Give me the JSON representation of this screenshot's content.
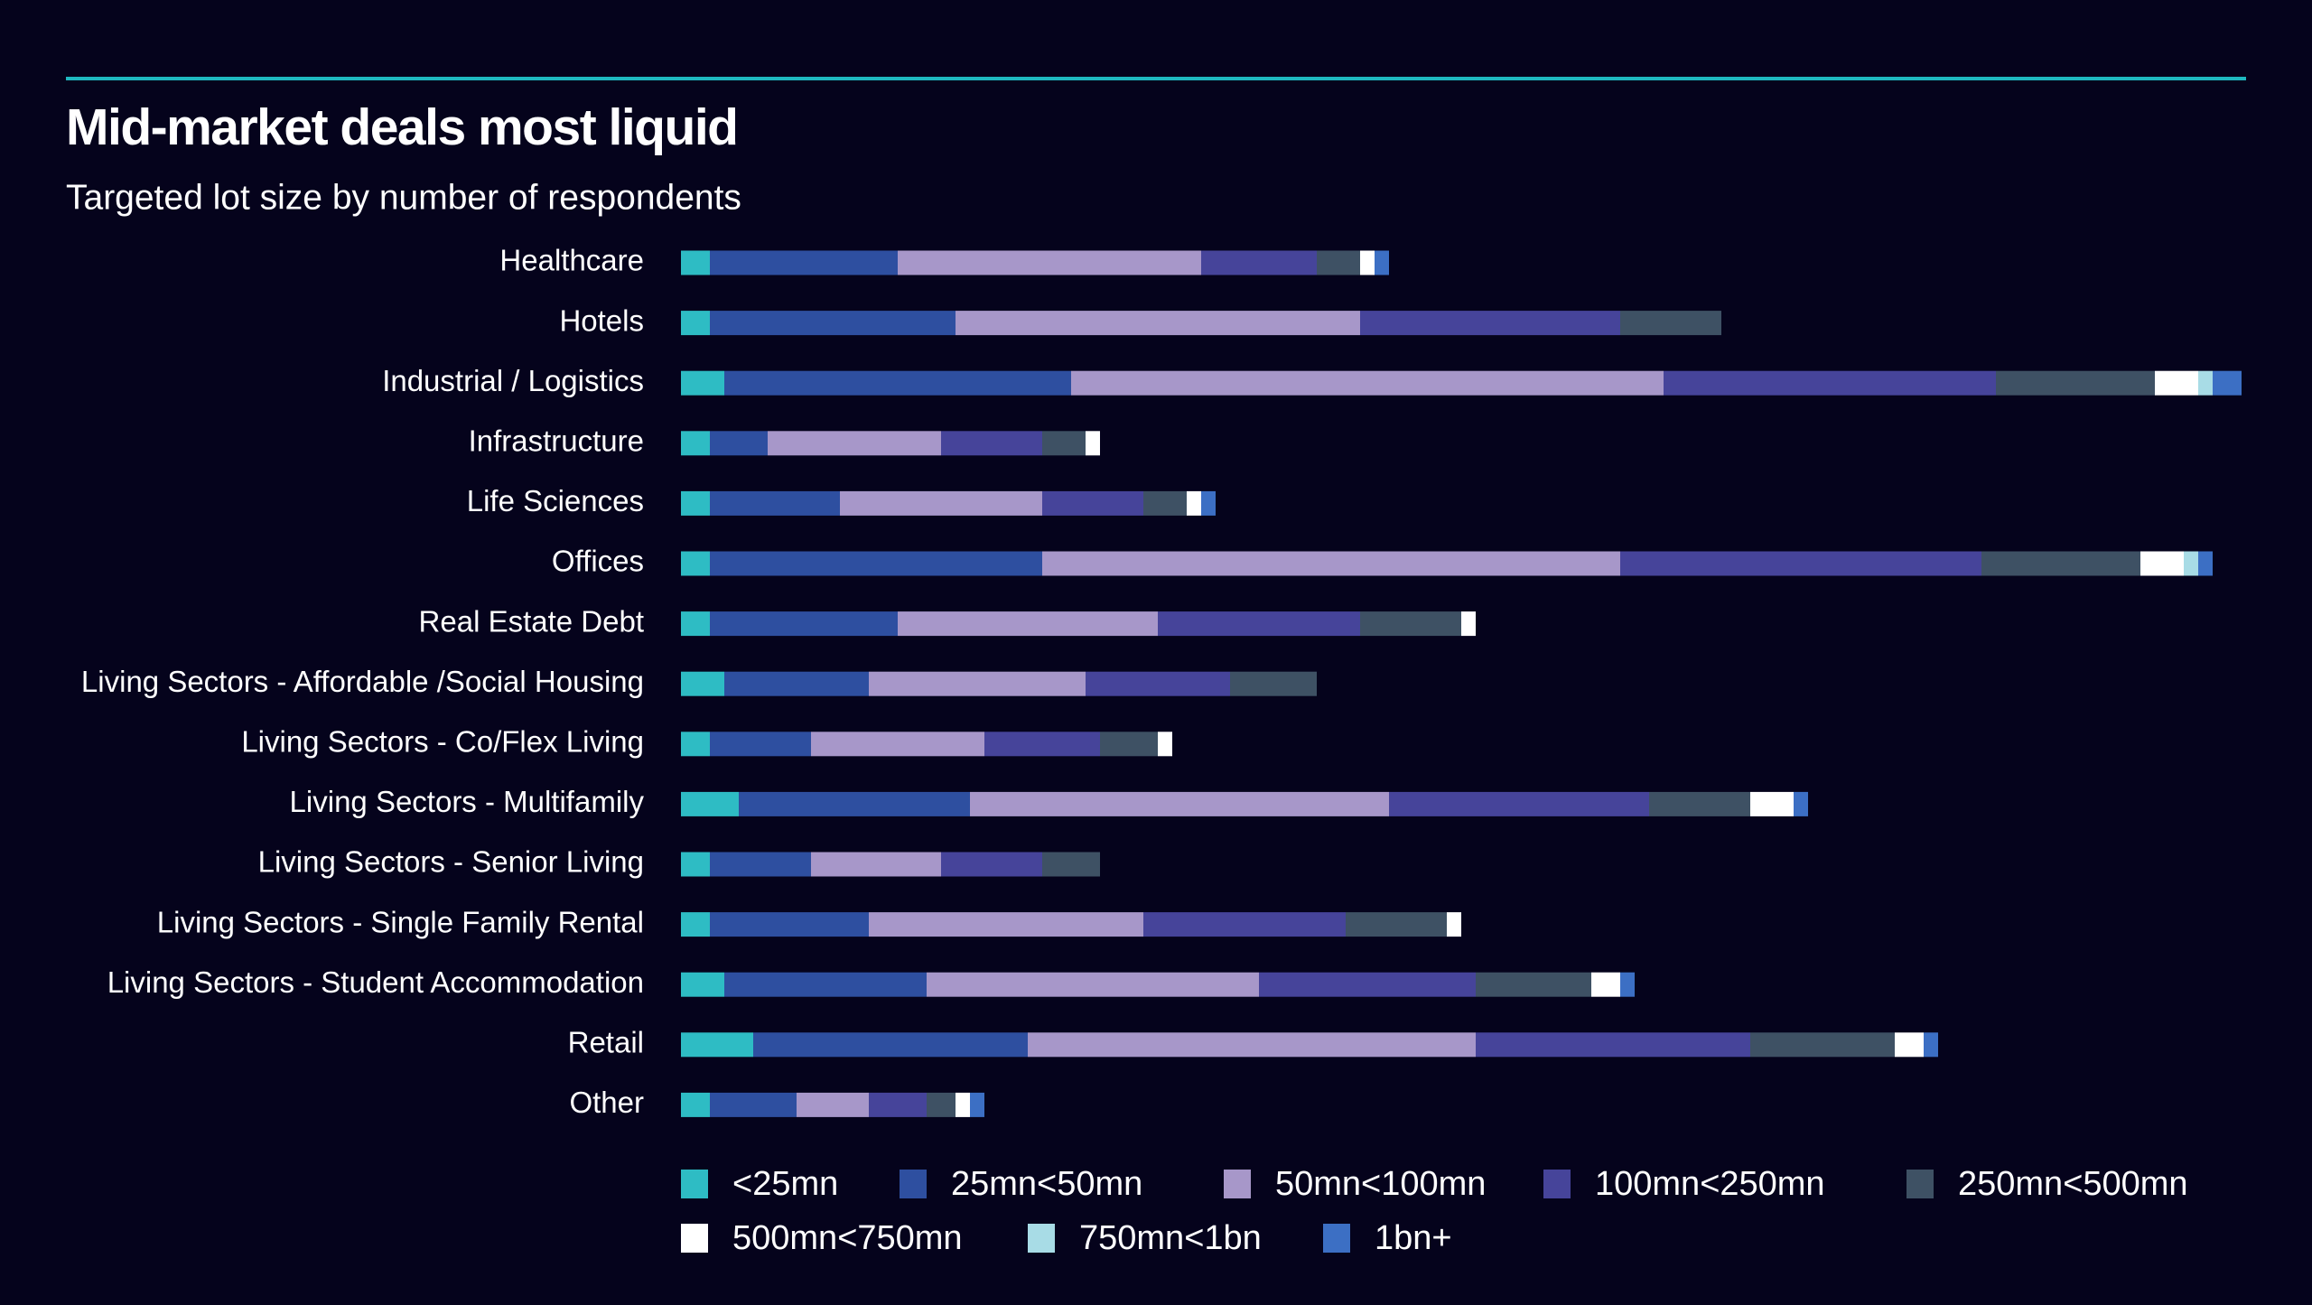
{
  "chart_data": {
    "type": "stacked-bar-horizontal",
    "title": "Mid-market deals most liquid",
    "subtitle": "Targeted lot size by number of respondents",
    "categories": [
      "Healthcare",
      "Hotels",
      "Industrial / Logistics",
      "Infrastructure",
      "Life Sciences",
      "Offices",
      "Real Estate Debt",
      "Living Sectors - Affordable /Social Housing",
      "Living Sectors - Co/Flex Living",
      "Living Sectors - Multifamily",
      "Living Sectors - Senior Living",
      "Living Sectors - Single Family Rental",
      "Living Sectors - Student Accommodation",
      "Retail",
      "Other"
    ],
    "series": [
      {
        "name": "<25mn",
        "color": "#2ebcc4",
        "values": [
          2,
          2,
          3,
          2,
          2,
          2,
          2,
          3,
          2,
          4,
          2,
          2,
          3,
          5,
          2
        ]
      },
      {
        "name": "25mn<50mn",
        "color": "#2e4fa0",
        "values": [
          13,
          17,
          24,
          4,
          9,
          23,
          13,
          10,
          7,
          16,
          7,
          11,
          14,
          19,
          6
        ]
      },
      {
        "name": "50mn<100mn",
        "color": "#a797c9",
        "values": [
          21,
          28,
          41,
          12,
          14,
          40,
          18,
          15,
          12,
          29,
          9,
          19,
          23,
          31,
          5
        ]
      },
      {
        "name": "100mn<250mn",
        "color": "#46449a",
        "values": [
          8,
          18,
          23,
          7,
          7,
          25,
          14,
          10,
          8,
          18,
          7,
          14,
          15,
          19,
          4
        ]
      },
      {
        "name": "250mn<500mn",
        "color": "#3e5164",
        "values": [
          3,
          7,
          11,
          3,
          3,
          11,
          7,
          6,
          4,
          7,
          4,
          7,
          8,
          10,
          2
        ]
      },
      {
        "name": "500mn<750mn",
        "color": "#ffffff",
        "values": [
          1,
          0,
          3,
          1,
          1,
          3,
          1,
          0,
          1,
          3,
          0,
          1,
          2,
          2,
          1
        ]
      },
      {
        "name": "750mn<1bn",
        "color": "#a8dce6",
        "values": [
          0,
          0,
          1,
          0,
          0,
          1,
          0,
          0,
          0,
          0,
          0,
          0,
          0,
          0,
          0
        ]
      },
      {
        "name": "1bn+",
        "color": "#3c6fc4",
        "values": [
          1,
          0,
          2,
          0,
          1,
          1,
          0,
          0,
          0,
          1,
          0,
          0,
          1,
          1,
          1
        ]
      }
    ]
  }
}
